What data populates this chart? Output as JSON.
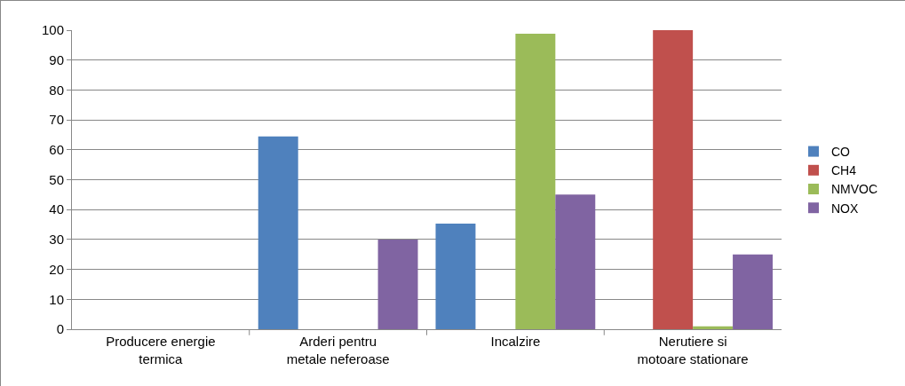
{
  "chart_data": {
    "type": "bar",
    "categories": [
      "Producere energie termica",
      "Arderi pentru metale neferoase",
      "Incalzire",
      "Nerutiere si motoare stationare"
    ],
    "series": [
      {
        "name": "CO",
        "color": "#4f81bd",
        "values": [
          0,
          64.5,
          35.3,
          0
        ]
      },
      {
        "name": "CH4",
        "color": "#c0504d",
        "values": [
          0,
          0,
          0,
          100
        ]
      },
      {
        "name": "NMVOC",
        "color": "#9bbb59",
        "values": [
          0,
          0,
          98.8,
          1
        ]
      },
      {
        "name": "NOX",
        "color": "#8064a2",
        "values": [
          0,
          30,
          45,
          25
        ]
      }
    ],
    "ylim": [
      0,
      100
    ],
    "yticks": [
      0,
      10,
      20,
      30,
      40,
      50,
      60,
      70,
      80,
      90,
      100
    ],
    "grid": "y",
    "legend": "right"
  }
}
